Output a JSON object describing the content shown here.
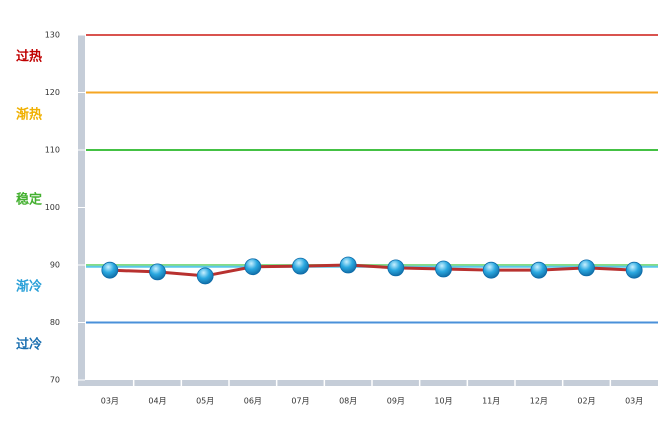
{
  "chart_data": {
    "type": "line",
    "categories": [
      "03月",
      "04月",
      "05月",
      "06月",
      "07月",
      "08月",
      "09月",
      "10月",
      "11月",
      "12月",
      "02月",
      "03月"
    ],
    "series": [
      {
        "color": "#b8312f",
        "values": [
          89.1,
          88.8,
          88.1,
          89.7,
          89.8,
          90.0,
          89.5,
          89.3,
          89.1,
          89.1,
          89.5,
          89.1
        ]
      }
    ],
    "ylim": [
      70,
      130
    ],
    "yticks": [
      70,
      80,
      90,
      100,
      110,
      120,
      130
    ],
    "reference_lines": [
      {
        "value": 130,
        "color": "#d9534f"
      },
      {
        "value": 120,
        "color": "#f5a623"
      },
      {
        "value": 110,
        "color": "#44c144"
      },
      {
        "value": 90,
        "color": "#86dc86"
      },
      {
        "value": 89.7,
        "color": "#5bc8e8"
      },
      {
        "value": 80,
        "color": "#4a90d9"
      }
    ],
    "zones": [
      {
        "label": "过热",
        "color": "#c00000"
      },
      {
        "label": "渐热",
        "color": "#f0b000"
      },
      {
        "label": "稳定",
        "color": "#44b030"
      },
      {
        "label": "渐冷",
        "color": "#2aa0d8"
      },
      {
        "label": "过冷",
        "color": "#1a6fb0"
      }
    ]
  }
}
